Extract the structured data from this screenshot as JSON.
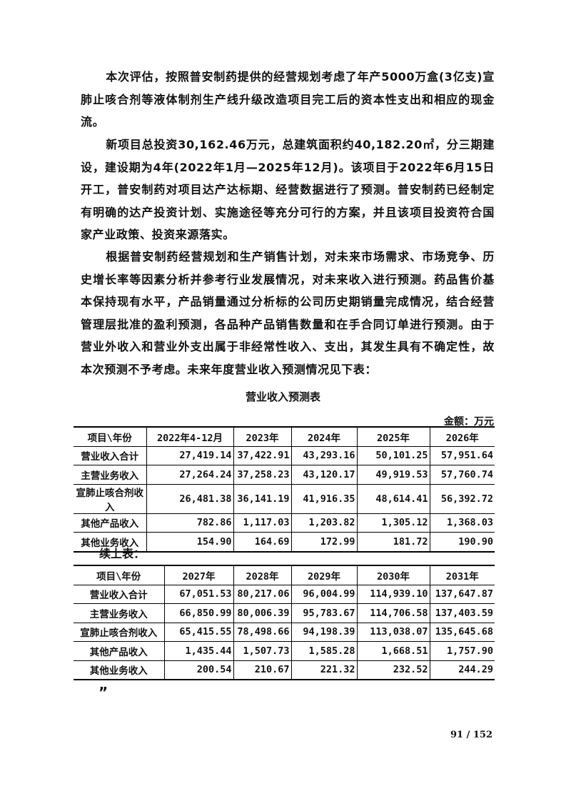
{
  "paragraphs": [
    "本次评估，按照普安制药提供的经营规划考虑了年产5000万盒(3亿支)宣肺止咳合剂等液体制剂生产线升级改造项目完工后的资本性支出和相应的现金流。",
    "新项目总投资30,162.46万元，总建筑面积约40,182.20㎡，分三期建设，建设期为4年(2022年1月—2025年12月)。该项目于2022年6月15日开工，普安制药对项目达产达标期、经营数据进行了预测。普安制药已经制定有明确的达产投资计划、实施途径等充分可行的方案，并且该项目投资符合国家产业政策、投资来源落实。",
    "根据普安制药经营规划和生产销售计划，对未来市场需求、市场竞争、历史增长率等因素分析并参考行业发展情况，对未来收入进行预测。药品售价基本保持现有水平，产品销量通过分析标的公司历史期销量完成情况，结合经营管理层批准的盈利预测，各品种产品销售数量和在手合同订单进行预测。由于营业外收入和营业外支出属于非经常性收入、支出，其发生具有不确定性，故本次预测不予考虑。未来年度营业收入预测情况见下表："
  ],
  "table_title": "营业收入预测表",
  "unit": "金额：万元",
  "table1": {
    "headers": [
      "项目\\年份",
      "2022年4-12月",
      "2023年",
      "2024年",
      "2025年",
      "2026年"
    ],
    "rows": [
      [
        "营业收入合计",
        "27,419.14",
        "37,422.91",
        "43,293.16",
        "50,101.25",
        "57,951.64"
      ],
      [
        "主营业务收入",
        "27,264.24",
        "37,258.23",
        "43,120.17",
        "49,919.53",
        "57,760.74"
      ],
      [
        "宣肺止咳合剂收入",
        "26,481.38",
        "36,141.19",
        "41,916.35",
        "48,614.41",
        "56,392.72"
      ],
      [
        "其他产品收入",
        "782.86",
        "1,117.03",
        "1,203.82",
        "1,305.12",
        "1,368.03"
      ],
      [
        "其他业务收入",
        "154.90",
        "164.69",
        "172.99",
        "181.72",
        "190.90"
      ]
    ]
  },
  "continued_label": "续上表：",
  "table2": {
    "headers": [
      "项目\\年份",
      "2027年",
      "2028年",
      "2029年",
      "2030年",
      "2031年"
    ],
    "rows": [
      [
        "营业收入合计",
        "67,051.53",
        "80,217.06",
        "96,004.99",
        "114,939.10",
        "137,647.87"
      ],
      [
        "主营业务收入",
        "66,850.99",
        "80,006.39",
        "95,783.67",
        "114,706.58",
        "137,403.59"
      ],
      [
        "宣肺止咳合剂收入",
        "65,415.55",
        "78,498.66",
        "94,198.39",
        "113,038.07",
        "135,645.68"
      ],
      [
        "其他产品收入",
        "1,435.44",
        "1,507.73",
        "1,585.28",
        "1,668.51",
        "1,757.90"
      ],
      [
        "其他业务收入",
        "200.54",
        "210.67",
        "221.32",
        "232.52",
        "244.29"
      ]
    ]
  },
  "closing_quote": "”",
  "page_number": "91 / 152"
}
